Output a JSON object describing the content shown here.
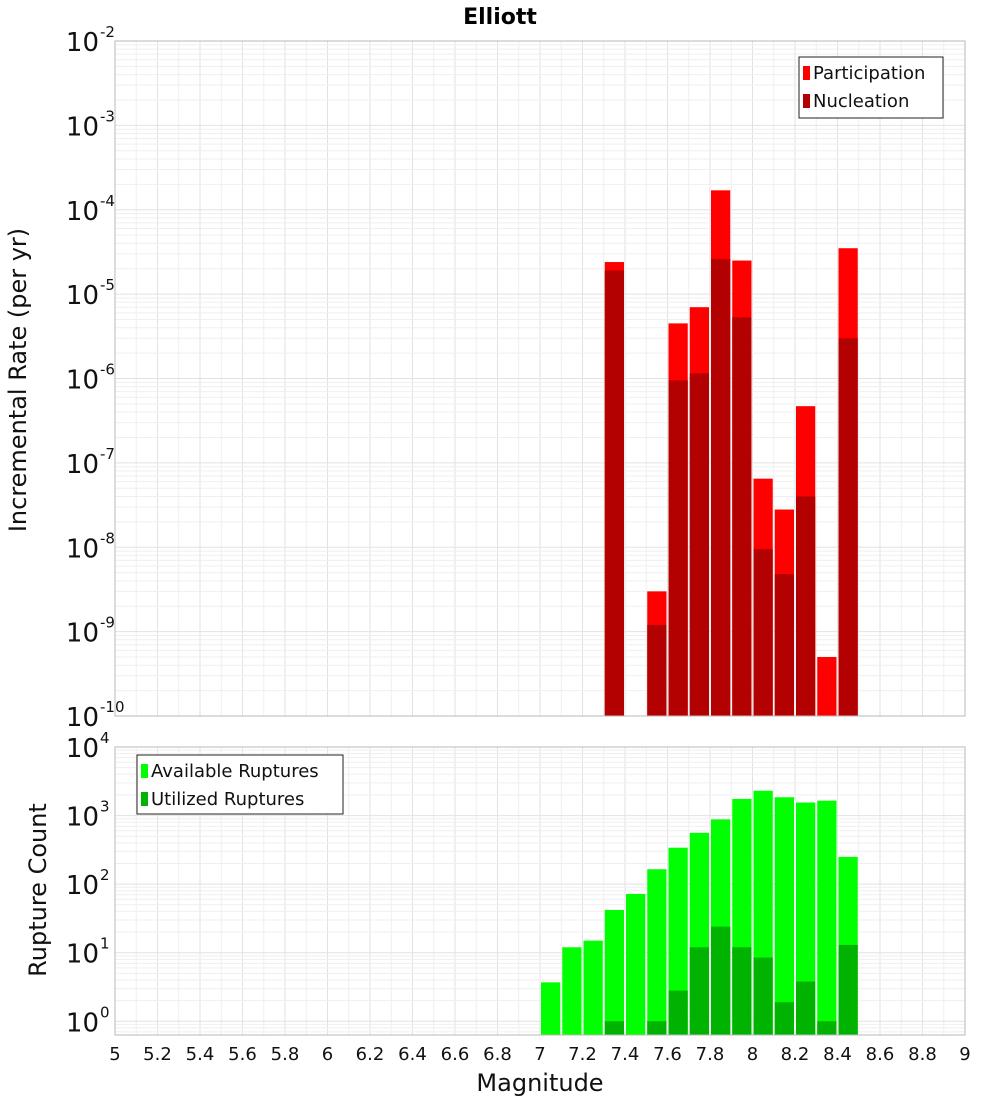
{
  "chart_data": [
    {
      "type": "bar",
      "title": "Elliott",
      "xlabel": "",
      "ylabel": "Incremental Rate (per yr)",
      "yscale": "log",
      "ylim_exponents": [
        -10,
        -2
      ],
      "y_ticks": [
        {
          "base": "10",
          "exp": "-2"
        },
        {
          "base": "10",
          "exp": "-3"
        },
        {
          "base": "10",
          "exp": "-4"
        },
        {
          "base": "10",
          "exp": "-5"
        },
        {
          "base": "10",
          "exp": "-6"
        },
        {
          "base": "10",
          "exp": "-7"
        },
        {
          "base": "10",
          "exp": "-8"
        },
        {
          "base": "10",
          "exp": "-9"
        },
        {
          "base": "10",
          "exp": "-10"
        }
      ],
      "xlim": [
        5,
        9
      ],
      "bin_width": 0.1,
      "legend_position": "top-right",
      "series": [
        {
          "name": "Participation",
          "color": "#ff0000",
          "points": [
            {
              "x": 7.35,
              "y": 2.4e-05
            },
            {
              "x": 7.55,
              "y": 3e-09
            },
            {
              "x": 7.65,
              "y": 4.5e-06
            },
            {
              "x": 7.75,
              "y": 7e-06
            },
            {
              "x": 7.85,
              "y": 0.00017
            },
            {
              "x": 7.95,
              "y": 2.5e-05
            },
            {
              "x": 8.05,
              "y": 6.5e-08
            },
            {
              "x": 8.15,
              "y": 2.8e-08
            },
            {
              "x": 8.25,
              "y": 4.7e-07
            },
            {
              "x": 8.35,
              "y": 5e-10
            },
            {
              "x": 8.45,
              "y": 3.5e-05
            }
          ]
        },
        {
          "name": "Nucleation",
          "color": "#b30000",
          "points": [
            {
              "x": 7.35,
              "y": 1.9e-05
            },
            {
              "x": 7.55,
              "y": 1.2e-09
            },
            {
              "x": 7.65,
              "y": 9.5e-07
            },
            {
              "x": 7.75,
              "y": 1.15e-06
            },
            {
              "x": 7.85,
              "y": 2.6e-05
            },
            {
              "x": 7.95,
              "y": 5.3e-06
            },
            {
              "x": 8.05,
              "y": 9.5e-09
            },
            {
              "x": 8.15,
              "y": 4.8e-09
            },
            {
              "x": 8.25,
              "y": 4e-08
            },
            {
              "x": 8.45,
              "y": 3e-06
            }
          ]
        }
      ]
    },
    {
      "type": "bar",
      "title": "",
      "xlabel": "Magnitude",
      "ylabel": "Rupture Count",
      "yscale": "log",
      "ylim_exponents": [
        -0.2,
        4
      ],
      "y_ticks": [
        {
          "base": "10",
          "exp": "4"
        },
        {
          "base": "10",
          "exp": "3"
        },
        {
          "base": "10",
          "exp": "2"
        },
        {
          "base": "10",
          "exp": "1"
        },
        {
          "base": "10",
          "exp": "0"
        }
      ],
      "xlim": [
        5,
        9
      ],
      "x_ticks": [
        "5",
        "5.2",
        "5.4",
        "5.6",
        "5.8",
        "6",
        "6.2",
        "6.4",
        "6.6",
        "6.8",
        "7",
        "7.2",
        "7.4",
        "7.6",
        "7.8",
        "8",
        "8.2",
        "8.4",
        "8.6",
        "8.8",
        "9"
      ],
      "bin_width": 0.1,
      "legend_position": "top-left",
      "series": [
        {
          "name": "Available Ruptures",
          "color": "#00ff00",
          "points": [
            {
              "x": 7.05,
              "y": 3.7
            },
            {
              "x": 7.15,
              "y": 12
            },
            {
              "x": 7.25,
              "y": 15
            },
            {
              "x": 7.35,
              "y": 42
            },
            {
              "x": 7.45,
              "y": 72
            },
            {
              "x": 7.55,
              "y": 165
            },
            {
              "x": 7.65,
              "y": 340
            },
            {
              "x": 7.75,
              "y": 560
            },
            {
              "x": 7.85,
              "y": 880
            },
            {
              "x": 7.95,
              "y": 1750
            },
            {
              "x": 8.05,
              "y": 2300
            },
            {
              "x": 8.15,
              "y": 1850
            },
            {
              "x": 8.25,
              "y": 1550
            },
            {
              "x": 8.35,
              "y": 1650
            },
            {
              "x": 8.45,
              "y": 250
            }
          ]
        },
        {
          "name": "Utilized Ruptures",
          "color": "#00b300",
          "points": [
            {
              "x": 7.35,
              "y": 1
            },
            {
              "x": 7.55,
              "y": 1
            },
            {
              "x": 7.65,
              "y": 2.8
            },
            {
              "x": 7.75,
              "y": 12
            },
            {
              "x": 7.85,
              "y": 24
            },
            {
              "x": 7.95,
              "y": 12
            },
            {
              "x": 8.05,
              "y": 8.5
            },
            {
              "x": 8.15,
              "y": 1.9
            },
            {
              "x": 8.25,
              "y": 3.8
            },
            {
              "x": 8.35,
              "y": 1
            },
            {
              "x": 8.45,
              "y": 13
            }
          ]
        }
      ]
    }
  ]
}
